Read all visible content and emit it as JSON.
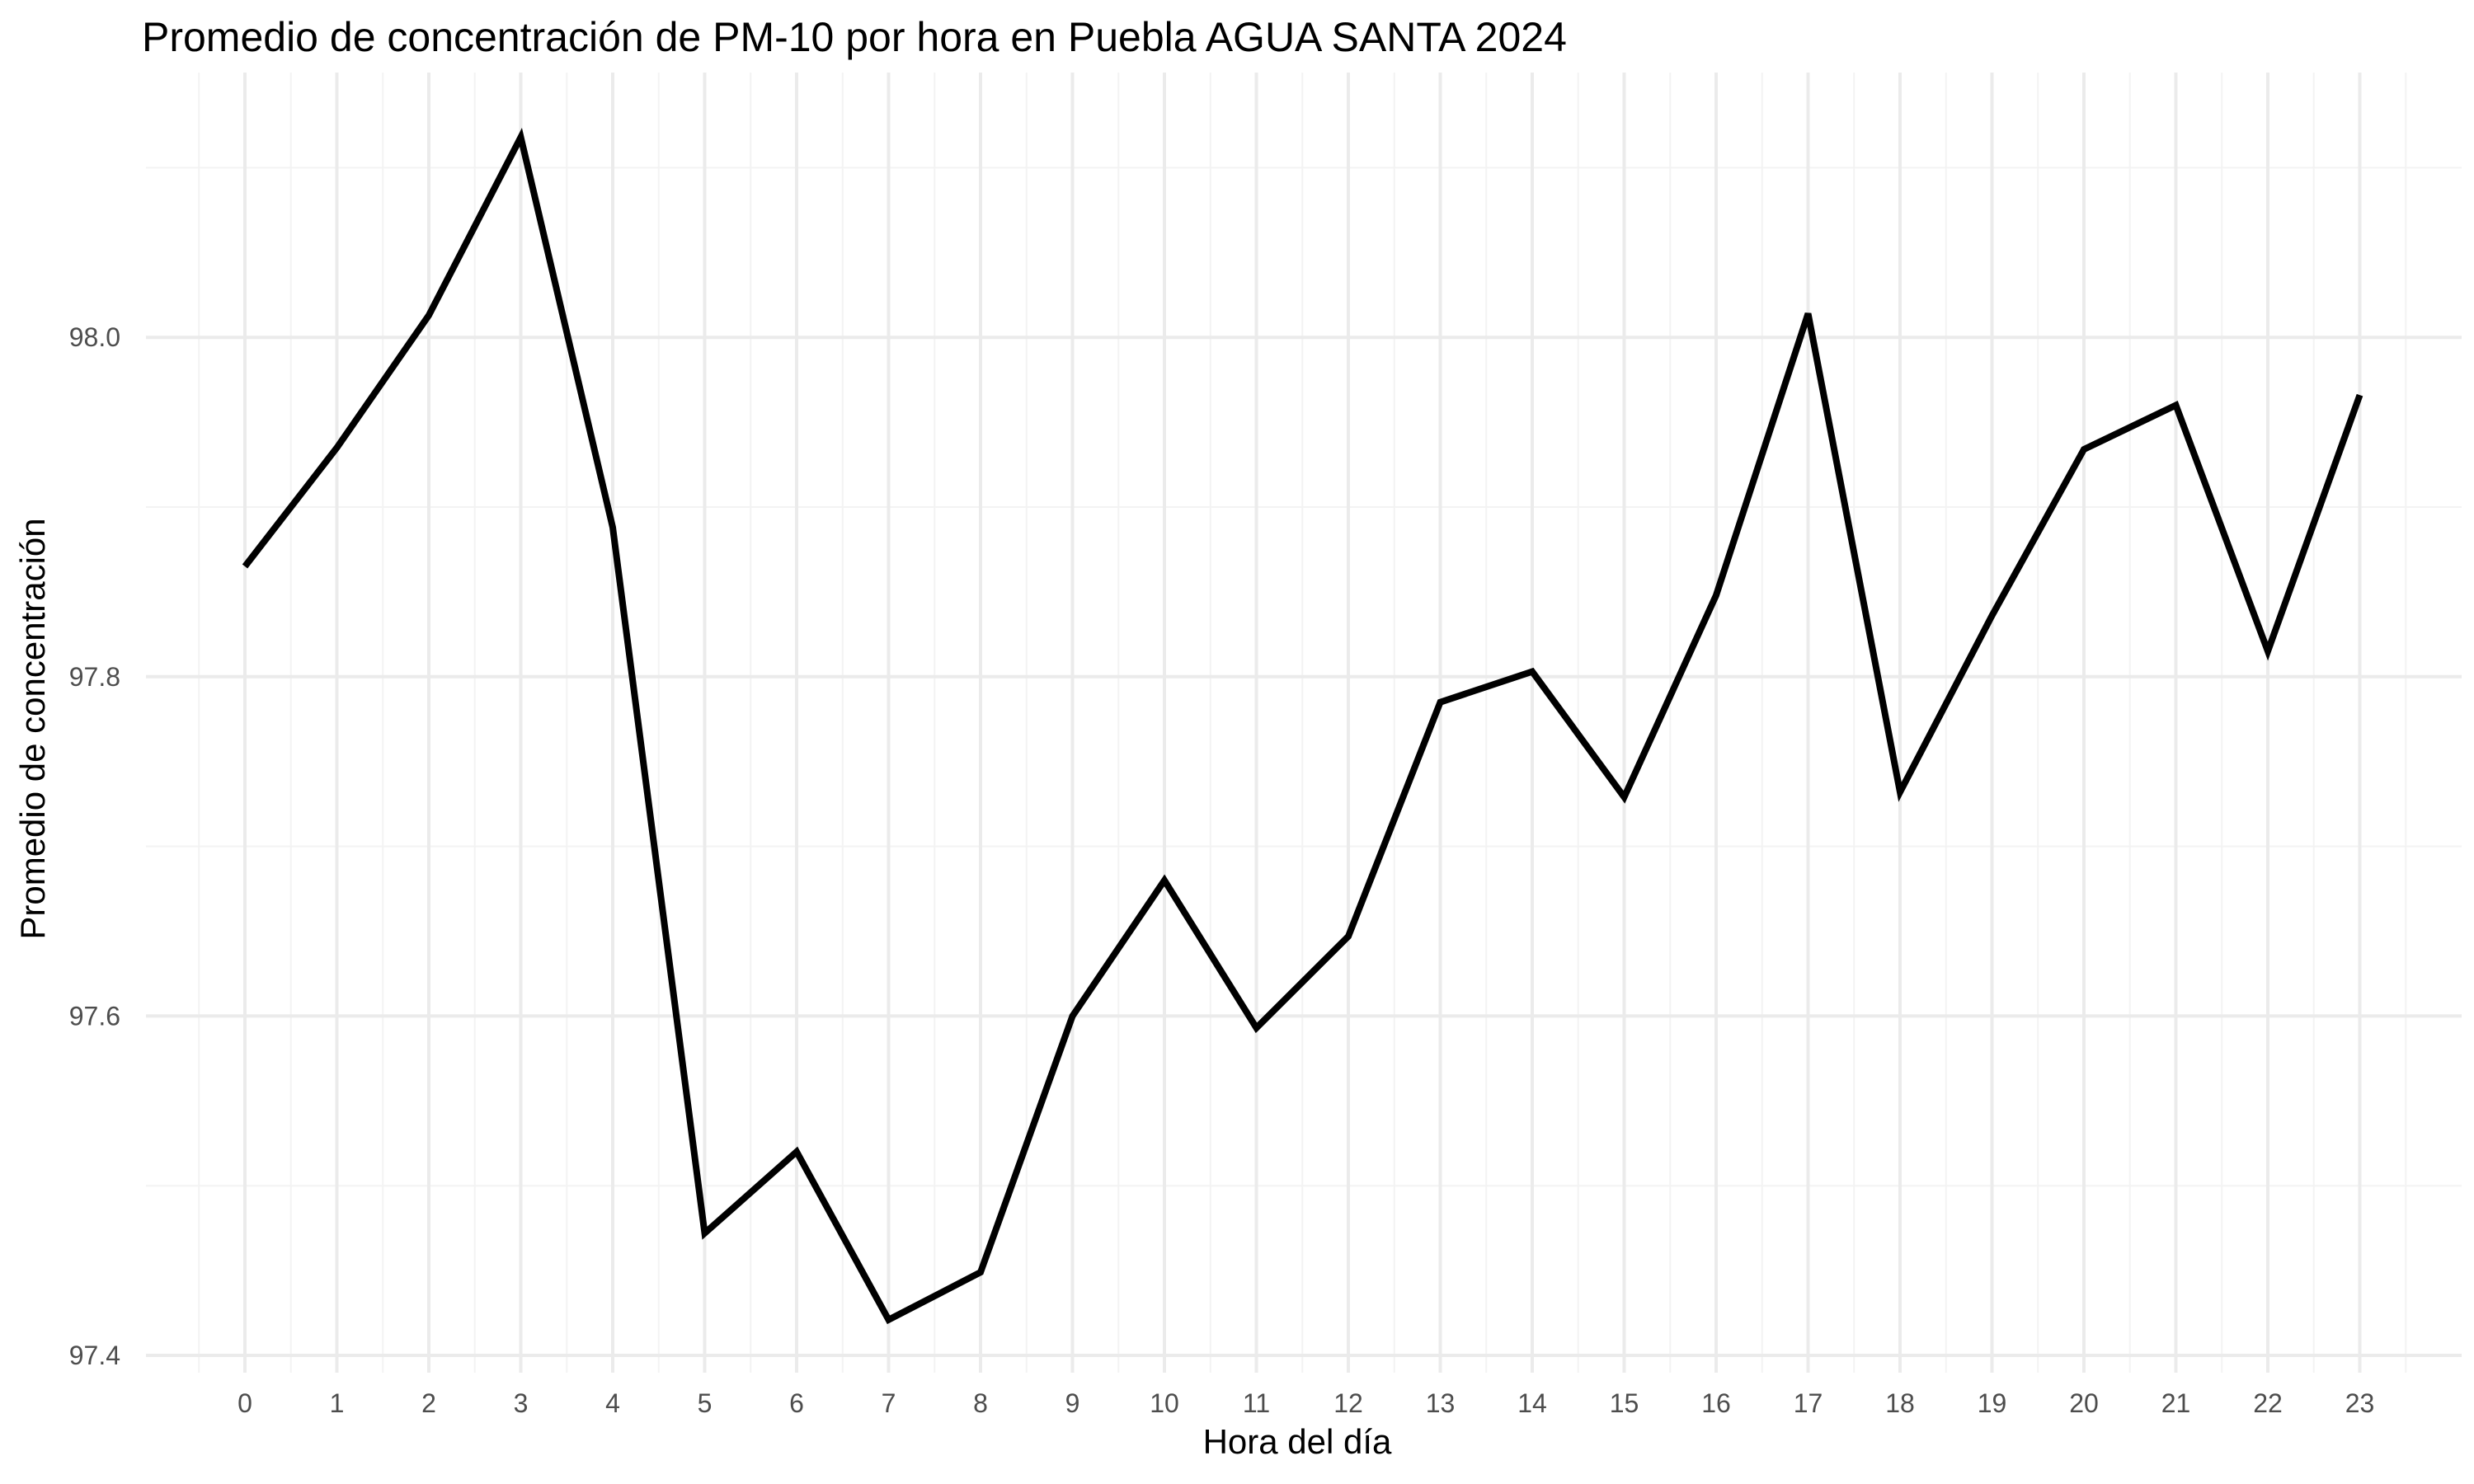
{
  "chart_data": {
    "type": "line",
    "title": "Promedio de concentración de PM-10 por hora en Puebla AGUA SANTA 2024",
    "xlabel": "Hora del día",
    "ylabel": "Promedio de concentración",
    "x": [
      0,
      1,
      2,
      3,
      4,
      5,
      6,
      7,
      8,
      9,
      10,
      11,
      12,
      13,
      14,
      15,
      16,
      17,
      18,
      19,
      20,
      21,
      22,
      23
    ],
    "x_tick_labels": [
      "0",
      "1",
      "2",
      "3",
      "4",
      "5",
      "6",
      "7",
      "8",
      "9",
      "10",
      "11",
      "12",
      "13",
      "14",
      "15",
      "16",
      "17",
      "18",
      "19",
      "20",
      "21",
      "22",
      "23"
    ],
    "y": [
      97.865,
      97.935,
      98.013,
      98.118,
      97.888,
      97.472,
      97.52,
      97.421,
      97.449,
      97.6,
      97.68,
      97.593,
      97.647,
      97.785,
      97.803,
      97.729,
      97.848,
      98.014,
      97.732,
      97.836,
      97.934,
      97.96,
      97.815,
      97.966
    ],
    "xlim": [
      -1.0,
      24.2
    ],
    "ylim": [
      97.4,
      98.13
    ],
    "y_ticks": [
      97.4,
      97.6,
      97.8,
      98.0
    ],
    "y_tick_labels": [
      "97.4",
      "97.6",
      "97.8",
      "98.0"
    ],
    "grid": true,
    "legend": "none",
    "line_color": "#000000",
    "grid_color": "#ebebeb",
    "background": "#ffffff"
  }
}
